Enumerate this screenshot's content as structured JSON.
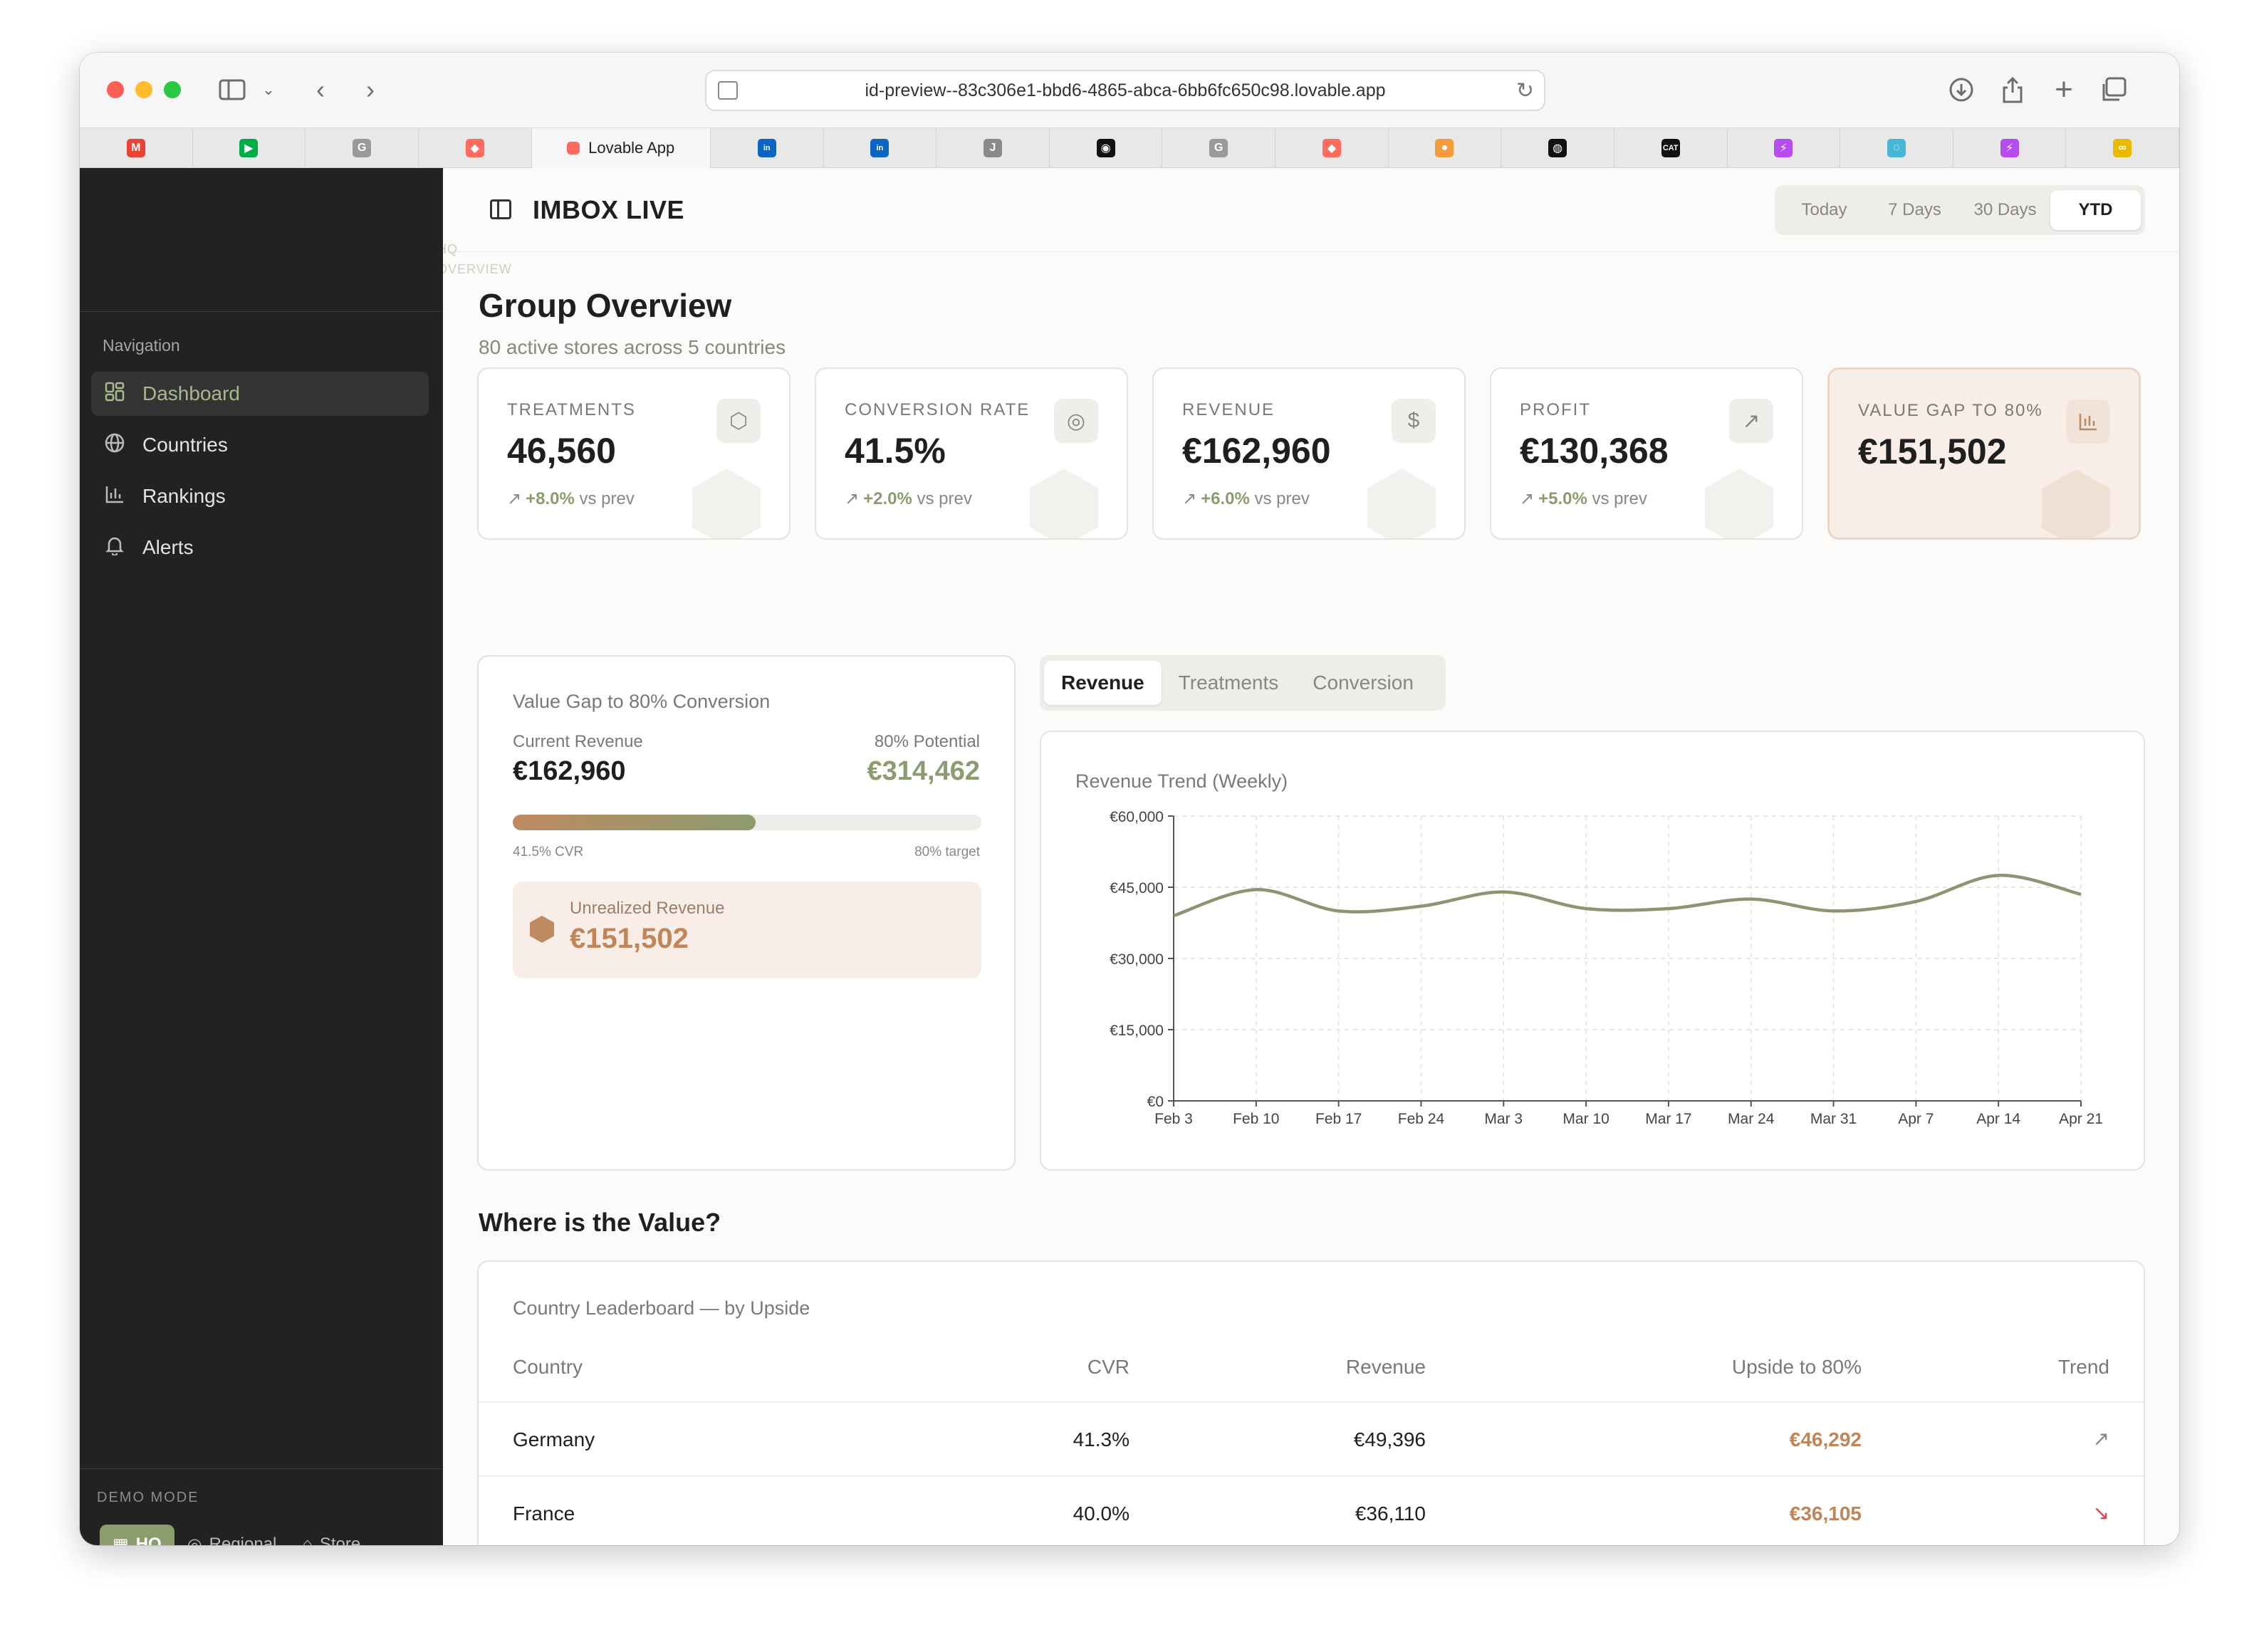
{
  "browser": {
    "url": "id-preview--83c306e1-bbd6-4865-abca-6bb6fc650c98.lovable.app",
    "active_tab_label": "Lovable App",
    "tabs": [
      {
        "icon": "gmail-icon",
        "glyph": "M",
        "color": "#ea4335"
      },
      {
        "icon": "google-meet-icon",
        "glyph": "▶",
        "color": "#00ac47"
      },
      {
        "icon": "grammarly-icon",
        "glyph": "G",
        "color": "#9a9a9a"
      },
      {
        "icon": "lovable-icon",
        "glyph": "◆",
        "color": "#ff6b5e"
      },
      {
        "icon": "linkedin-icon",
        "glyph": "in",
        "color": "#0a66c2"
      },
      {
        "icon": "linkedin-icon",
        "glyph": "in",
        "color": "#0a66c2"
      },
      {
        "icon": "j-app-icon",
        "glyph": "J",
        "color": "#8a8a8a"
      },
      {
        "icon": "circle-app-icon",
        "glyph": "◉",
        "color": "#111111"
      },
      {
        "icon": "grammarly-icon",
        "glyph": "G",
        "color": "#9a9a9a"
      },
      {
        "icon": "lovable-icon",
        "glyph": "◆",
        "color": "#ff6b5e"
      },
      {
        "icon": "sunset-icon",
        "glyph": "●",
        "color": "#f39a3c"
      },
      {
        "icon": "github-icon",
        "glyph": "◍",
        "color": "#111111"
      },
      {
        "icon": "cat-icon",
        "glyph": "CAT",
        "color": "#111111"
      },
      {
        "icon": "bolt-icon",
        "glyph": "⚡",
        "color": "#b44cf0"
      },
      {
        "icon": "spiral-icon",
        "glyph": "◌",
        "color": "#49b6d8"
      },
      {
        "icon": "bolt-icon",
        "glyph": "⚡",
        "color": "#b44cf0"
      },
      {
        "icon": "glasses-icon",
        "glyph": "∞",
        "color": "#e9b800"
      }
    ]
  },
  "sidebar": {
    "nav_label": "Navigation",
    "items": [
      {
        "label": "Dashboard",
        "icon": "dashboard-grid-icon",
        "active": true
      },
      {
        "label": "Countries",
        "icon": "globe-icon",
        "active": false
      },
      {
        "label": "Rankings",
        "icon": "bar-chart-icon",
        "active": false
      },
      {
        "label": "Alerts",
        "icon": "bell-icon",
        "active": false
      }
    ],
    "demo_mode_label": "DEMO MODE",
    "modes": [
      {
        "label": "HQ",
        "icon": "building-icon",
        "active": true
      },
      {
        "label": "Regional",
        "icon": "map-pin-icon",
        "active": false
      },
      {
        "label": "Store",
        "icon": "store-icon",
        "active": false
      }
    ]
  },
  "header": {
    "title": "IMBOX LIVE",
    "ranges": [
      "Today",
      "7 Days",
      "30 Days",
      "YTD"
    ],
    "active_range": "YTD",
    "ghost_crumb_1": "HQ",
    "ghost_crumb_2": "OVERVIEW"
  },
  "page": {
    "title": "Group Overview",
    "subtitle": "80 active stores across 5 countries"
  },
  "kpis": [
    {
      "label": "TREATMENTS",
      "value": "46,560",
      "delta": "+8.0%",
      "delta_suffix": "vs prev",
      "icon": "hexagon-icon"
    },
    {
      "label": "CONVERSION RATE",
      "value": "41.5%",
      "delta": "+2.0%",
      "delta_suffix": "vs prev",
      "icon": "target-icon"
    },
    {
      "label": "REVENUE",
      "value": "€162,960",
      "delta": "+6.0%",
      "delta_suffix": "vs prev",
      "icon": "dollar-icon"
    },
    {
      "label": "PROFIT",
      "value": "€130,368",
      "delta": "+5.0%",
      "delta_suffix": "vs prev",
      "icon": "trending-up-icon"
    },
    {
      "label": "VALUE GAP TO 80%",
      "value": "€151,502",
      "icon": "bar-chart-icon",
      "highlight": true
    }
  ],
  "value_gap": {
    "title": "Value Gap to 80% Conversion",
    "current_label": "Current Revenue",
    "current_value": "€162,960",
    "potential_label": "80% Potential",
    "potential_value": "€314,462",
    "progress_fraction": 0.518,
    "left_caption": "41.5% CVR",
    "right_caption": "80% target",
    "unrealized_label": "Unrealized Revenue",
    "unrealized_value": "€151,502"
  },
  "chart_tabs": [
    "Revenue",
    "Treatments",
    "Conversion"
  ],
  "active_chart_tab": "Revenue",
  "chart_data": {
    "type": "line",
    "title": "Revenue Trend (Weekly)",
    "xlabel": "",
    "ylabel": "",
    "categories": [
      "Feb 3",
      "Feb 10",
      "Feb 17",
      "Feb 24",
      "Mar 3",
      "Mar 10",
      "Mar 17",
      "Mar 24",
      "Mar 31",
      "Apr 7",
      "Apr 14",
      "Apr 21"
    ],
    "values": [
      39000,
      44500,
      40000,
      41000,
      44000,
      40500,
      40500,
      42500,
      40000,
      42000,
      47500,
      43500
    ],
    "ylim": [
      0,
      60000
    ],
    "yticks": [
      0,
      15000,
      30000,
      45000,
      60000
    ],
    "ytick_labels": [
      "€0",
      "€15,000",
      "€30,000",
      "€45,000",
      "€60,000"
    ],
    "grid": true,
    "line_color": "#8c9474"
  },
  "leaderboard": {
    "section_title": "Where is the Value?",
    "caption": "Country Leaderboard — by Upside",
    "columns": [
      "Country",
      "CVR",
      "Revenue",
      "Upside to 80%",
      "Trend"
    ],
    "rows": [
      {
        "country": "Germany",
        "cvr": "41.3%",
        "revenue": "€49,396",
        "upside": "€46,292",
        "trend": "up"
      },
      {
        "country": "France",
        "cvr": "40.0%",
        "revenue": "€36,110",
        "upside": "€36,105",
        "trend": "down"
      }
    ]
  }
}
